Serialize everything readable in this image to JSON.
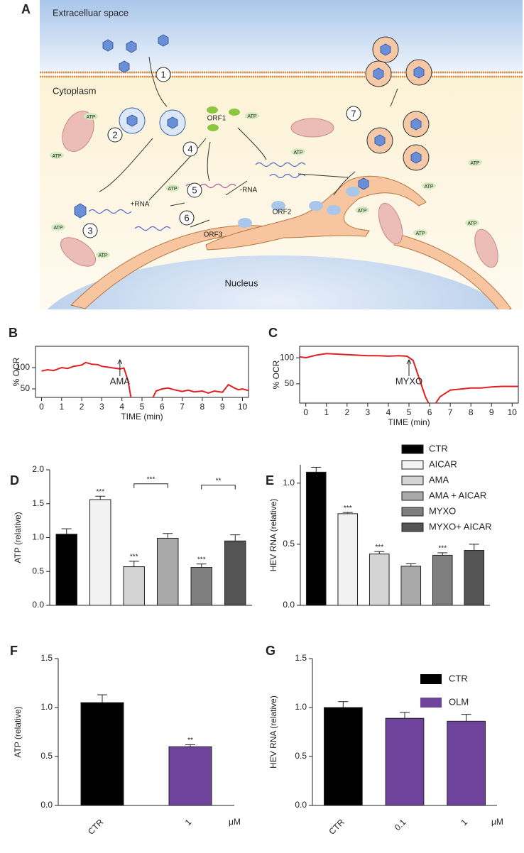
{
  "diagram": {
    "panel": "A",
    "extracellular": "Extracelluar space",
    "cytoplasm": "Cytoplasm",
    "nucleus": "Nucleus",
    "steps": [
      "1",
      "2",
      "3",
      "4",
      "5",
      "6",
      "7"
    ],
    "orf1": "ORF1",
    "orf2": "ORF2",
    "orf3": "ORF3",
    "plus_rna": "+RNA",
    "minus_rna": "-RNA",
    "atp": "ATP"
  },
  "chart_data": [
    {
      "type": "line",
      "panel": "B",
      "ylabel": "% OCR",
      "xlabel": "TIME (min)",
      "color": "#e02020",
      "x": [
        0,
        0.3,
        0.6,
        1,
        1.3,
        1.6,
        2,
        2.2,
        2.5,
        2.8,
        3,
        3.3,
        3.6,
        3.9,
        4.1,
        4.3,
        4.45,
        5,
        5.55,
        5.7,
        6,
        6.3,
        6.6,
        7,
        7.3,
        7.6,
        8,
        8.3,
        8.6,
        9,
        9.3,
        9.6,
        9.8,
        10,
        10.3
      ],
      "values": [
        92,
        95,
        93,
        100,
        98,
        103,
        106,
        112,
        108,
        107,
        103,
        101,
        99,
        97,
        99,
        70,
        30,
        null,
        30,
        45,
        50,
        52,
        48,
        44,
        47,
        43,
        45,
        40,
        45,
        42,
        60,
        52,
        48,
        50,
        46
      ],
      "xlim": [
        -0.3,
        10.3
      ],
      "ylim": [
        30,
        150
      ],
      "xticks": [
        0,
        1,
        2,
        3,
        4,
        5,
        6,
        7,
        8,
        9,
        10
      ],
      "yticks": [
        50,
        100
      ],
      "annotation": {
        "text": "AMA",
        "x": 3.9
      }
    },
    {
      "type": "line",
      "panel": "C",
      "ylabel": "% OCR",
      "xlabel": "TIME (min)",
      "color": "#e02020",
      "x": [
        -0.3,
        0,
        0.5,
        1,
        1.5,
        2,
        2.5,
        3,
        3.5,
        4,
        4.5,
        4.9,
        5.2,
        5.5,
        5.8,
        5.95,
        6.15,
        6.3,
        6.5,
        7,
        7.5,
        8,
        8.5,
        9,
        9.5,
        10,
        10.3
      ],
      "values": [
        102,
        100,
        105,
        108,
        107,
        106,
        105,
        104,
        104,
        103,
        104,
        103,
        95,
        60,
        25,
        13,
        null,
        13,
        25,
        38,
        40,
        42,
        42,
        44,
        45,
        45,
        45
      ],
      "xlim": [
        -0.3,
        10.3
      ],
      "ylim": [
        13,
        122
      ],
      "xticks": [
        0,
        1,
        2,
        3,
        4,
        5,
        6,
        7,
        8,
        9,
        10
      ],
      "yticks": [
        50,
        100
      ],
      "annotation": {
        "text": "MYXO",
        "x": 5
      }
    },
    {
      "type": "bar",
      "panel": "D",
      "ylabel": "ATP (relative)",
      "categories": [
        "CTR",
        "AICAR",
        "AMA",
        "AMA + AICAR",
        "MYXO",
        "MYXO+ AICAR"
      ],
      "colors": [
        "#000000",
        "#f2f2f2",
        "#d4d4d4",
        "#a9a9a9",
        "#7f7f7f",
        "#545454"
      ],
      "values": [
        1.05,
        1.56,
        0.57,
        0.99,
        0.56,
        0.95
      ],
      "errors": [
        0.08,
        0.05,
        0.08,
        0.07,
        0.05,
        0.09
      ],
      "significance": [
        null,
        "***",
        "***",
        null,
        "***",
        null
      ],
      "brackets": [
        {
          "text": "***",
          "between": [
            2,
            3
          ]
        },
        {
          "text": "**",
          "between": [
            4,
            5
          ]
        }
      ],
      "ylim": [
        0,
        2
      ],
      "yticks": [
        {
          "value": 0,
          "label": "0.0"
        },
        {
          "value": 0.5,
          "label": "0.5"
        },
        {
          "value": 1,
          "label": "1.0"
        },
        {
          "value": 1.5,
          "label": "1.5"
        },
        {
          "value": 2,
          "label": "2.0"
        }
      ],
      "show_x_labels": false
    },
    {
      "type": "bar",
      "panel": "E",
      "ylabel": "HEV RNA (relative)",
      "categories": [
        "CTR",
        "AICAR",
        "AMA",
        "AMA + AICAR",
        "MYXO",
        "MYXO+ AICAR"
      ],
      "colors": [
        "#000000",
        "#f2f2f2",
        "#d4d4d4",
        "#a9a9a9",
        "#7f7f7f",
        "#545454"
      ],
      "values": [
        1.09,
        0.75,
        0.42,
        0.32,
        0.41,
        0.45
      ],
      "errors": [
        0.04,
        0.01,
        0.02,
        0.02,
        0.02,
        0.05
      ],
      "significance": [
        null,
        "***",
        "***",
        null,
        "***",
        null
      ],
      "ylim": [
        0,
        1.15
      ],
      "yticks": [
        {
          "value": 0,
          "label": "0.0"
        },
        {
          "value": 0.5,
          "label": "0.5"
        },
        {
          "value": 1,
          "label": "1.0"
        }
      ],
      "show_x_labels": false,
      "legend": true
    },
    {
      "type": "bar",
      "panel": "F",
      "ylabel": "ATP (relative)",
      "x_unit": "μM",
      "categories": [
        "CTR",
        "1"
      ],
      "colors": [
        "#000000",
        "#6f439b"
      ],
      "values": [
        1.05,
        0.6
      ],
      "errors": [
        0.08,
        0.02
      ],
      "significance": [
        null,
        "**"
      ],
      "ylim": [
        0,
        1.5
      ],
      "yticks": [
        {
          "value": 0,
          "label": "0.0"
        },
        {
          "value": 0.5,
          "label": "0.5"
        },
        {
          "value": 1,
          "label": "1.0"
        },
        {
          "value": 1.5,
          "label": "1.5"
        }
      ],
      "show_x_labels": true
    },
    {
      "type": "bar",
      "panel": "G",
      "ylabel": "HEV RNA (relative)",
      "x_unit": "μM",
      "categories": [
        "CTR",
        "0.1",
        "1"
      ],
      "colors": [
        "#000000",
        "#6f439b",
        "#6f439b"
      ],
      "values": [
        1.0,
        0.89,
        0.86
      ],
      "errors": [
        0.06,
        0.06,
        0.07
      ],
      "ylim": [
        0,
        1.5
      ],
      "yticks": [
        {
          "value": 0,
          "label": "0.0"
        },
        {
          "value": 0.5,
          "label": "0.5"
        },
        {
          "value": 1,
          "label": "1.0"
        },
        {
          "value": 1.5,
          "label": "1.5"
        }
      ],
      "show_x_labels": true,
      "legend": [
        {
          "name": "CTR",
          "color": "#000000"
        },
        {
          "name": "OLM",
          "color": "#6f439b"
        }
      ]
    }
  ]
}
